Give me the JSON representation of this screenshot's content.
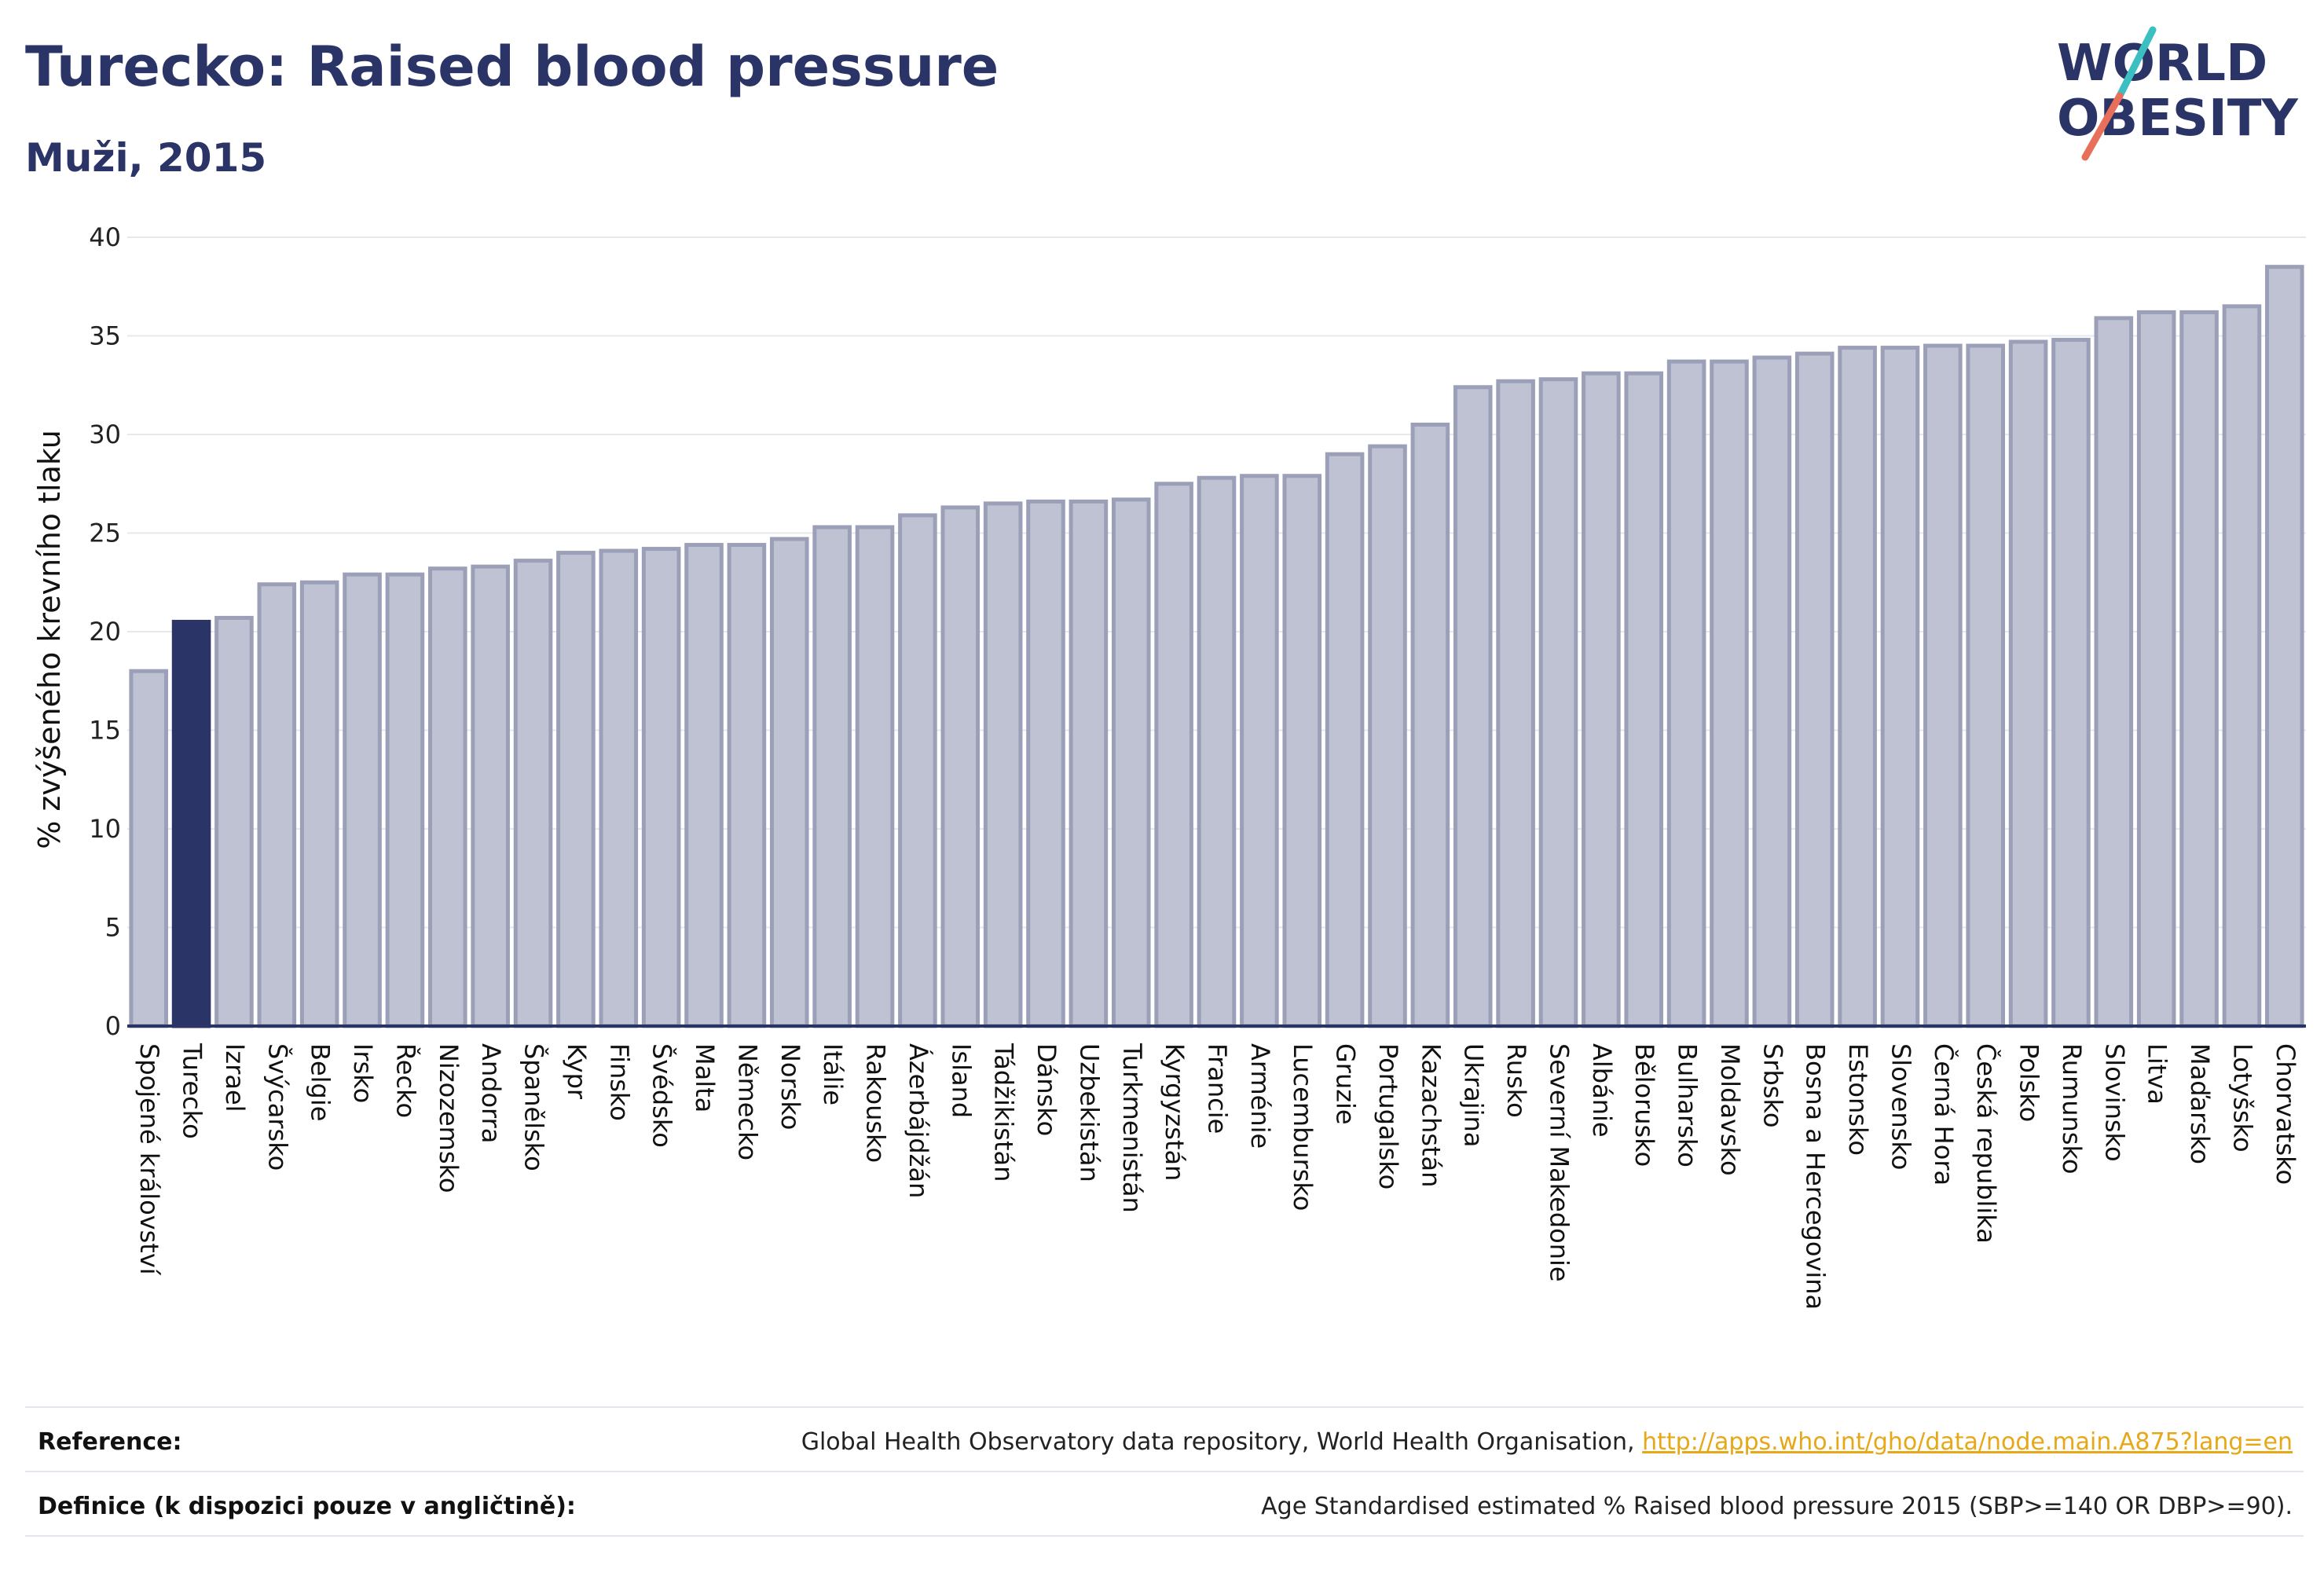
{
  "title": "Turecko: Raised blood pressure",
  "subtitle": "Muži, 2015",
  "logo": {
    "line1": "WORLD",
    "line2": "OBESITY"
  },
  "colors": {
    "highlight": "#2b3467",
    "bar_fill": "#bfc2d2",
    "bar_stroke": "#9ba0b8",
    "text": "#2b3467",
    "link": "#e6a817"
  },
  "chart_data": {
    "type": "bar",
    "ylabel": "% zvýšeného krevního tlaku",
    "ylim": [
      0,
      40
    ],
    "yticks": [
      0,
      5,
      10,
      15,
      20,
      25,
      30,
      35,
      40
    ],
    "grid": true,
    "highlight": "Turecko",
    "categories": [
      "Spojené království",
      "Turecko",
      "Izrael",
      "Švýcarsko",
      "Belgie",
      "Irsko",
      "Řecko",
      "Nizozemsko",
      "Andorra",
      "Španělsko",
      "Kypr",
      "Finsko",
      "Švédsko",
      "Malta",
      "Německo",
      "Norsko",
      "Itálie",
      "Rakousko",
      "Ázerbájdžán",
      "Island",
      "Tádžikistán",
      "Dánsko",
      "Uzbekistán",
      "Turkmenistán",
      "Kyrgyzstán",
      "Francie",
      "Arménie",
      "Lucembursko",
      "Gruzie",
      "Portugalsko",
      "Kazachstán",
      "Ukrajina",
      "Rusko",
      "Severní Makedonie",
      "Albánie",
      "Bělorusko",
      "Bulharsko",
      "Moldavsko",
      "Srbsko",
      "Bosna a Hercegovina",
      "Estonsko",
      "Slovensko",
      "Černá Hora",
      "Česká republika",
      "Polsko",
      "Rumunsko",
      "Slovinsko",
      "Litva",
      "Maďarsko",
      "Lotyšsko",
      "Chorvatsko"
    ],
    "values": [
      18.0,
      20.5,
      20.7,
      22.4,
      22.5,
      22.9,
      22.9,
      23.2,
      23.3,
      23.6,
      24.0,
      24.1,
      24.2,
      24.4,
      24.4,
      24.7,
      25.3,
      25.3,
      25.9,
      26.3,
      26.5,
      26.6,
      26.6,
      26.7,
      27.5,
      27.8,
      27.9,
      27.9,
      29.0,
      29.4,
      30.5,
      32.4,
      32.7,
      32.8,
      33.1,
      33.1,
      33.7,
      33.7,
      33.9,
      34.1,
      34.4,
      34.4,
      34.5,
      34.5,
      34.7,
      34.8,
      35.9,
      36.2,
      36.2,
      36.5,
      38.5
    ]
  },
  "footer": {
    "reference_label": "Reference:",
    "reference_text": "Global Health Observatory data repository, World Health Organisation,",
    "reference_link": "http://apps.who.int/gho/data/node.main.A875?lang=en",
    "definition_label": "Definice (k dispozici pouze v angličtině):",
    "definition_text": "Age Standardised estimated % Raised blood pressure 2015 (SBP>=140 OR DBP>=90)."
  }
}
